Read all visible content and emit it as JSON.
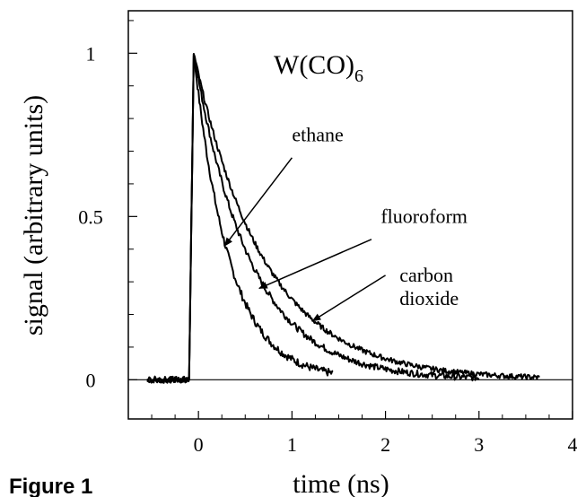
{
  "caption": "Figure 1",
  "chart_data": {
    "type": "line",
    "title": "",
    "inset_title": {
      "main": "W(CO)",
      "subscript": "6"
    },
    "xlabel": "time (ns)",
    "ylabel": "signal (arbitrary units)",
    "xlim": [
      -0.75,
      4.0
    ],
    "ylim": [
      -0.12,
      1.13
    ],
    "x_ticks": [
      0,
      1,
      2,
      3,
      4
    ],
    "x_tick_labels": [
      "0",
      "1",
      "2",
      "3",
      "4"
    ],
    "y_ticks": [
      0,
      0.5,
      1
    ],
    "y_tick_labels": [
      "0",
      "0.5",
      "1"
    ],
    "zero_line": true,
    "grid": false,
    "colors": {
      "line": "#000000",
      "axes": "#000000",
      "background": "#ffffff"
    },
    "series": [
      {
        "name": "ethane",
        "rise_start": -0.1,
        "peak_x": -0.05,
        "decay_tau_ns": 0.38,
        "x_end": 1.45,
        "noise": 0.012
      },
      {
        "name": "fluoroform",
        "rise_start": -0.1,
        "peak_x": -0.05,
        "decay_tau_ns": 0.6,
        "x_end": 3.0,
        "noise": 0.01
      },
      {
        "name": "carbon dioxide",
        "rise_start": -0.1,
        "peak_x": -0.05,
        "decay_tau_ns": 0.75,
        "x_end": 3.65,
        "noise": 0.008
      }
    ],
    "baseline": {
      "x_start": -0.55,
      "x_end": -0.1,
      "noise": 0.01
    },
    "annotations": [
      {
        "label": "ethane",
        "lines": [
          "ethane"
        ],
        "text_at": [
          1.0,
          0.73
        ],
        "arrow_from": [
          1.0,
          0.68
        ],
        "arrow_to": [
          0.28,
          0.41
        ]
      },
      {
        "label": "fluoroform",
        "lines": [
          "fluoroform"
        ],
        "text_at": [
          1.95,
          0.48
        ],
        "arrow_from": [
          1.85,
          0.43
        ],
        "arrow_to": [
          0.65,
          0.28
        ]
      },
      {
        "label": "carbon dioxide",
        "lines": [
          "carbon",
          "dioxide"
        ],
        "text_at": [
          2.15,
          0.3
        ],
        "arrow_from": [
          2.0,
          0.32
        ],
        "arrow_to": [
          1.22,
          0.18
        ]
      }
    ]
  }
}
